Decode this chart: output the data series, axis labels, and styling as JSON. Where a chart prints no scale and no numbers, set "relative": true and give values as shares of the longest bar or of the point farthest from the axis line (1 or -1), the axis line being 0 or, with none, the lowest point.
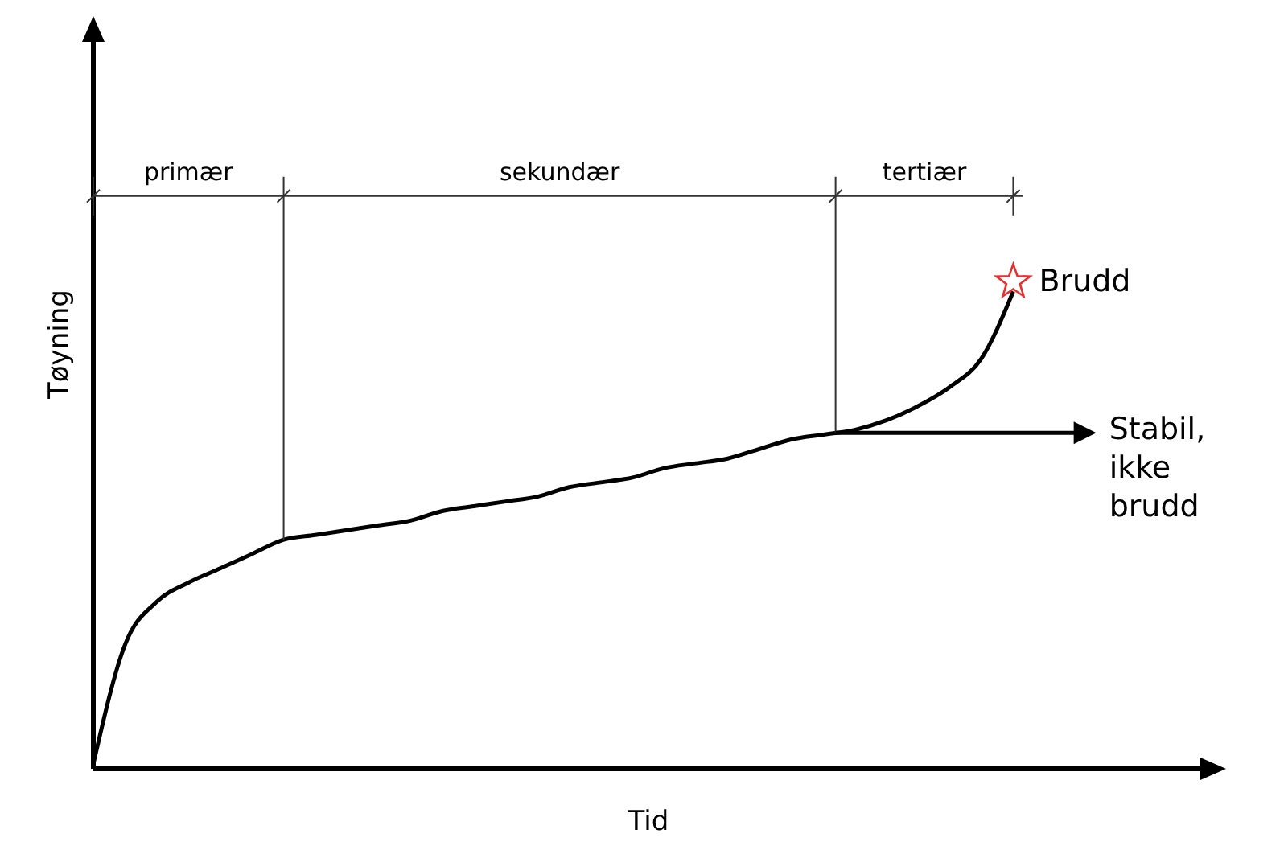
{
  "chart_data": {
    "type": "line",
    "relative": true,
    "xlabel": "Tid",
    "ylabel": "Tøyning",
    "categories": [
      null,
      null,
      null,
      null,
      null,
      null,
      null,
      null,
      null,
      null,
      null,
      null,
      null,
      null,
      null,
      null,
      null,
      null,
      null,
      null,
      null,
      null,
      null,
      null,
      null,
      null,
      null,
      null,
      null,
      null,
      null,
      null,
      null,
      null,
      null,
      null
    ],
    "series": [
      {
        "color": "#000000",
        "values": [
          0.01,
          0.26,
          0.35,
          0.39,
          0.42,
          0.45,
          0.48,
          0.49,
          0.5,
          0.51,
          0.52,
          0.54,
          0.55,
          0.56,
          0.57,
          0.59,
          0.6,
          0.61,
          0.63,
          0.64,
          0.65,
          0.67,
          0.69,
          0.7,
          0.71,
          0.73,
          0.76,
          0.8,
          0.86,
          1,
          null,
          null,
          null,
          null,
          null,
          null
        ]
      }
    ],
    "marker": "none",
    "line_style": "solid",
    "annotations": [
      "primær",
      "sekundær",
      "tertiær",
      "Brudd",
      "Stabil, ikke brudd"
    ]
  }
}
